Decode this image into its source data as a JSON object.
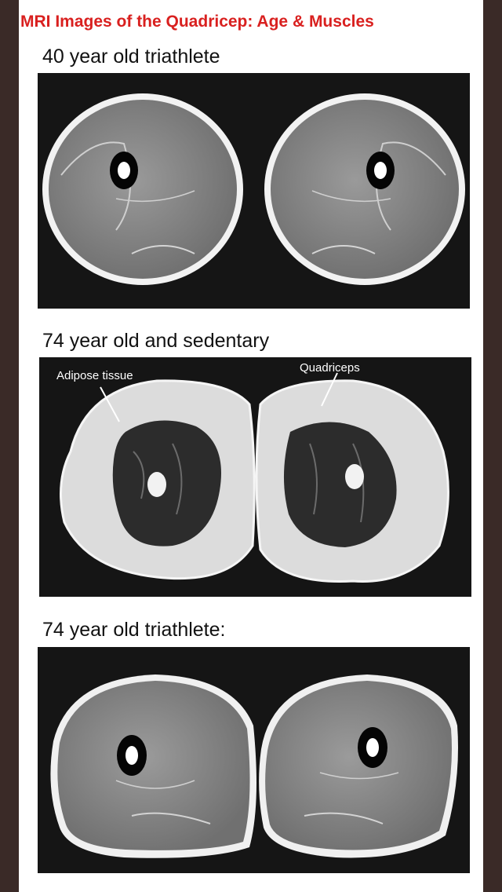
{
  "title": "MRI Images of the Quadricep: Age & Muscles",
  "panels": [
    {
      "caption": "40 year old triathlete"
    },
    {
      "caption": "74 year old and sedentary",
      "annotations": {
        "left": "Adipose tissue",
        "right": "Quadriceps"
      }
    },
    {
      "caption": "74 year old triathlete:"
    }
  ],
  "colors": {
    "title": "#d9201f",
    "background_frame": "#3a2a27",
    "muscle_gray": "#8d8d8d",
    "fat_white": "#e4e4e4",
    "atrophied_muscle": "#2e2e2e"
  }
}
